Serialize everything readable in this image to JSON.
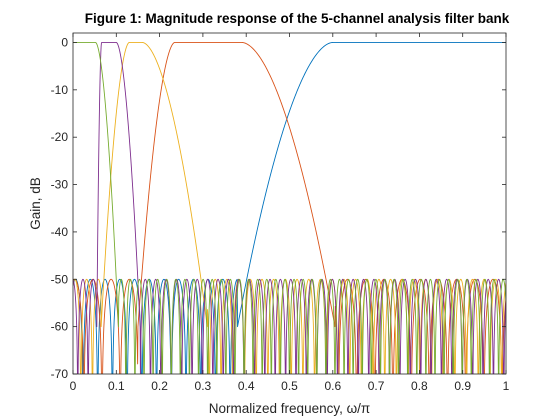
{
  "chart_data": {
    "type": "line",
    "title": "Figure 1: Magnitude response of the 5-channel analysis filter bank",
    "xlabel": "Normalized frequency, ω/π",
    "ylabel": "Gain, dB",
    "xlim": [
      0,
      1
    ],
    "ylim": [
      -70,
      2
    ],
    "xticks": [
      0,
      0.1,
      0.2,
      0.3,
      0.4,
      0.5,
      0.6,
      0.7,
      0.8,
      0.9,
      1
    ],
    "xtick_labels": [
      "0",
      "0.1",
      "0.2",
      "0.3",
      "0.4",
      "0.5",
      "0.6",
      "0.7",
      "0.8",
      "0.9",
      "1"
    ],
    "yticks": [
      0,
      -10,
      -20,
      -30,
      -40,
      -50,
      -60,
      -70
    ],
    "ytick_labels": [
      "0",
      "-10",
      "-20",
      "-30",
      "-40",
      "-50",
      "-60",
      "-70"
    ],
    "grid": false,
    "legend": "none",
    "stopband_level_db": -49,
    "series": [
      {
        "color": "#0072BD",
        "band": "highpass",
        "passband_x": [
          0.6,
          1.0
        ],
        "transition_x": [
          0.38,
          0.6
        ],
        "stopband_x": [
          0.0,
          0.38
        ]
      },
      {
        "color": "#D95319",
        "band": "bandpass",
        "passband_x": [
          0.235,
          0.39
        ],
        "transition_lo_x": [
          0.15,
          0.235
        ],
        "transition_hi_x": [
          0.39,
          0.605
        ]
      },
      {
        "color": "#EDB120",
        "band": "bandpass",
        "passband_x": [
          0.13,
          0.16
        ],
        "transition_lo_x": [
          0.065,
          0.13
        ],
        "transition_hi_x": [
          0.16,
          0.31
        ]
      },
      {
        "color": "#7E2F8E",
        "band": "bandpass",
        "passband_x": [
          0.066,
          0.1
        ],
        "transition_lo_x": [
          0.055,
          0.066
        ],
        "transition_hi_x": [
          0.1,
          0.155
        ]
      },
      {
        "color": "#77AC30",
        "band": "lowpass",
        "passband_x": [
          0.0,
          0.052
        ],
        "transition_x": [
          0.052,
          0.105
        ],
        "stopband_x": [
          0.105,
          1.0
        ]
      }
    ]
  }
}
